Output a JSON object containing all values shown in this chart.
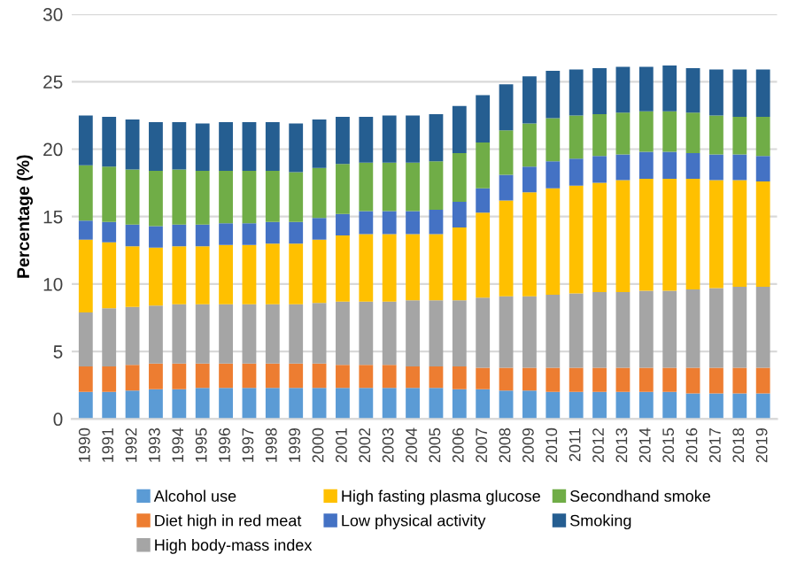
{
  "chart_data": {
    "type": "bar",
    "stacked": true,
    "ylabel": "Percentage (%)",
    "categories": [
      "1990",
      "1991",
      "1992",
      "1993",
      "1994",
      "1995",
      "1996",
      "1997",
      "1998",
      "1999",
      "2000",
      "2001",
      "2002",
      "2003",
      "2004",
      "2005",
      "2006",
      "2007",
      "2008",
      "2009",
      "2010",
      "2011",
      "2012",
      "2013",
      "2014",
      "2015",
      "2016",
      "2017",
      "2018",
      "2019"
    ],
    "ylim": [
      0,
      30
    ],
    "yticks": [
      0,
      5,
      10,
      15,
      20,
      25,
      30
    ],
    "grid": "y",
    "legend": "bottom",
    "series": [
      {
        "name": "Alcohol use",
        "color": "#5b9bd5",
        "values": [
          2.0,
          2.0,
          2.1,
          2.2,
          2.2,
          2.3,
          2.3,
          2.3,
          2.3,
          2.3,
          2.3,
          2.3,
          2.3,
          2.3,
          2.3,
          2.3,
          2.2,
          2.2,
          2.1,
          2.1,
          2.0,
          2.0,
          2.0,
          2.0,
          2.0,
          2.0,
          1.9,
          1.9,
          1.9,
          1.9
        ]
      },
      {
        "name": "Diet high in red meat",
        "color": "#ed7d31",
        "values": [
          1.9,
          1.9,
          1.9,
          1.9,
          1.9,
          1.8,
          1.8,
          1.8,
          1.8,
          1.8,
          1.8,
          1.7,
          1.7,
          1.7,
          1.6,
          1.6,
          1.7,
          1.6,
          1.7,
          1.7,
          1.8,
          1.8,
          1.8,
          1.8,
          1.8,
          1.8,
          1.9,
          1.9,
          1.9,
          1.9
        ]
      },
      {
        "name": "High body-mass index",
        "color": "#a5a5a5",
        "values": [
          4.0,
          4.3,
          4.3,
          4.3,
          4.4,
          4.4,
          4.4,
          4.4,
          4.4,
          4.4,
          4.5,
          4.7,
          4.7,
          4.7,
          4.9,
          4.9,
          4.9,
          5.2,
          5.3,
          5.3,
          5.4,
          5.5,
          5.6,
          5.6,
          5.7,
          5.7,
          5.8,
          5.9,
          6.0,
          6.0
        ]
      },
      {
        "name": "High fasting plasma glucose",
        "color": "#ffc000",
        "values": [
          5.4,
          4.9,
          4.5,
          4.3,
          4.3,
          4.3,
          4.4,
          4.4,
          4.5,
          4.5,
          4.7,
          4.9,
          5.0,
          5.0,
          4.9,
          4.9,
          5.4,
          6.3,
          7.1,
          7.7,
          7.9,
          8.0,
          8.1,
          8.3,
          8.3,
          8.3,
          8.2,
          8.0,
          7.9,
          7.8
        ]
      },
      {
        "name": "Low physical activity",
        "color": "#4472c4",
        "values": [
          1.4,
          1.5,
          1.6,
          1.6,
          1.6,
          1.6,
          1.6,
          1.6,
          1.6,
          1.6,
          1.6,
          1.6,
          1.7,
          1.7,
          1.7,
          1.8,
          1.9,
          1.8,
          1.9,
          1.9,
          2.0,
          2.0,
          2.0,
          1.9,
          2.0,
          2.0,
          1.9,
          1.9,
          1.9,
          1.9
        ]
      },
      {
        "name": "Secondhand smoke",
        "color": "#70ad47",
        "values": [
          4.1,
          4.1,
          4.1,
          4.1,
          4.1,
          4.0,
          3.9,
          3.9,
          3.8,
          3.7,
          3.7,
          3.7,
          3.6,
          3.6,
          3.6,
          3.6,
          3.6,
          3.4,
          3.3,
          3.2,
          3.2,
          3.2,
          3.1,
          3.1,
          3.0,
          3.0,
          3.0,
          2.9,
          2.8,
          2.9
        ]
      },
      {
        "name": "Smoking",
        "color": "#255e91",
        "values": [
          3.7,
          3.7,
          3.7,
          3.6,
          3.5,
          3.5,
          3.6,
          3.6,
          3.6,
          3.6,
          3.6,
          3.5,
          3.4,
          3.5,
          3.5,
          3.5,
          3.5,
          3.5,
          3.4,
          3.5,
          3.5,
          3.4,
          3.4,
          3.4,
          3.3,
          3.4,
          3.3,
          3.4,
          3.5,
          3.5
        ]
      }
    ]
  }
}
